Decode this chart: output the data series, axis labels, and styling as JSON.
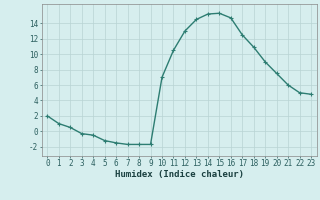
{
  "x": [
    0,
    1,
    2,
    3,
    4,
    5,
    6,
    7,
    8,
    9,
    10,
    11,
    12,
    13,
    14,
    15,
    16,
    17,
    18,
    19,
    20,
    21,
    22,
    23
  ],
  "y": [
    2,
    1,
    0.5,
    -0.3,
    -0.5,
    -1.2,
    -1.5,
    -1.7,
    -1.7,
    -1.7,
    7,
    10.5,
    13,
    14.5,
    15.2,
    15.3,
    14.7,
    12.5,
    10.9,
    9,
    7.5,
    6,
    5,
    4.8
  ],
  "line_color": "#2d7d72",
  "marker": "+",
  "marker_size": 3,
  "marker_lw": 0.8,
  "bg_color": "#d6eeee",
  "grid_color": "#b8d4d4",
  "xlabel": "Humidex (Indice chaleur)",
  "xlim": [
    -0.5,
    23.5
  ],
  "ylim": [
    -3.2,
    16.5
  ],
  "yticks": [
    -2,
    0,
    2,
    4,
    6,
    8,
    10,
    12,
    14
  ],
  "xticks": [
    0,
    1,
    2,
    3,
    4,
    5,
    6,
    7,
    8,
    9,
    10,
    11,
    12,
    13,
    14,
    15,
    16,
    17,
    18,
    19,
    20,
    21,
    22,
    23
  ],
  "tick_fontsize": 5.5,
  "xlabel_fontsize": 6.5,
  "linewidth": 1.0
}
